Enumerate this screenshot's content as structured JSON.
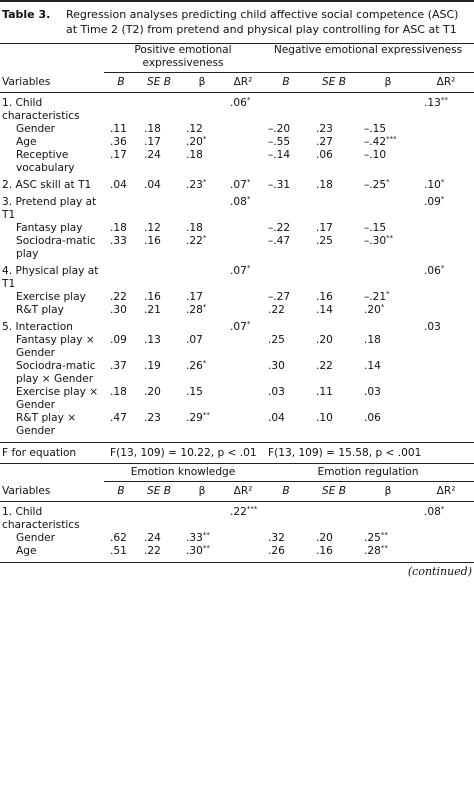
{
  "caption": {
    "label": "Table 3.",
    "text": "Regression analyses predicting child affective social competence (ASC) at Time 2 (T2) from pretend and physical play controlling for ASC at T1"
  },
  "tables": [
    {
      "groups": [
        "Positive emotional expressiveness",
        "Negative emotional expressiveness"
      ],
      "columns": [
        "Variables",
        "B",
        "SE B",
        "β",
        "ΔR²",
        "B",
        "SE B",
        "β",
        "ΔR²"
      ],
      "rows": [
        [
          "1. Child characteristics",
          null,
          null,
          null,
          ".06*",
          null,
          null,
          null,
          ".13**"
        ],
        [
          "Gender",
          ".11",
          ".18",
          ".12",
          null,
          "–.20",
          ".23",
          "–.15",
          null
        ],
        [
          "Age",
          ".36",
          ".17",
          ".20*",
          null,
          "–.55",
          ".27",
          "–.42***",
          null
        ],
        [
          "Receptive vocabulary",
          ".17",
          ".24",
          ".18",
          null,
          "–.14",
          ".06",
          "–.10",
          null
        ],
        [
          "2. ASC skill at T1",
          ".04",
          ".04",
          ".23*",
          ".07*",
          "–.31",
          ".18",
          "–.25*",
          ".10*"
        ],
        [
          "3. Pretend play at T1",
          null,
          null,
          null,
          ".08*",
          null,
          null,
          null,
          ".09*"
        ],
        [
          "Fantasy play",
          ".18",
          ".12",
          ".18",
          null,
          "–.22",
          ".17",
          "–.15",
          null
        ],
        [
          "Sociodra-matic play",
          ".33",
          ".16",
          ".22*",
          null,
          "–.47",
          ".25",
          "–.30**",
          null
        ],
        [
          "4. Physical play at T1",
          null,
          null,
          null,
          ".07*",
          null,
          null,
          null,
          ".06*"
        ],
        [
          "Exercise play",
          ".22",
          ".16",
          ".17",
          null,
          "–.27",
          ".16",
          "–.21*",
          null
        ],
        [
          "R&T play",
          ".30",
          ".21",
          ".28*",
          null,
          ".22",
          ".14",
          ".20*",
          null
        ],
        [
          "5. Interaction",
          null,
          null,
          null,
          ".07*",
          null,
          null,
          null,
          ".03"
        ],
        [
          "Fantasy play × Gender",
          ".09",
          ".13",
          ".07",
          null,
          ".25",
          ".20",
          ".18",
          null
        ],
        [
          "Sociodra-matic play × Gender",
          ".37",
          ".19",
          ".26*",
          null,
          ".30",
          ".22",
          ".14",
          null
        ],
        [
          "Exercise play × Gender",
          ".18",
          ".20",
          ".15",
          null,
          ".03",
          ".11",
          ".03",
          null
        ],
        [
          "R&T play × Gender",
          ".47",
          ".23",
          ".29**",
          null,
          ".04",
          ".10",
          ".06",
          null
        ]
      ],
      "footer": [
        "F for equation",
        "F(13, 109) = 10.22, p < .01",
        "F(13, 109) = 15.58, p < .001"
      ]
    },
    {
      "groups": [
        "Emotion knowledge",
        "Emotion regulation"
      ],
      "columns": [
        "Variables",
        "B",
        "SE B",
        "β",
        "ΔR²",
        "B",
        "SE B",
        "β",
        "ΔR²"
      ],
      "rows": [
        [
          "1. Child characteristics",
          null,
          null,
          null,
          ".22***",
          null,
          null,
          null,
          ".08*"
        ],
        [
          "Gender",
          ".62",
          ".24",
          ".33**",
          null,
          ".32",
          ".20",
          ".25**",
          null
        ],
        [
          "Age",
          ".51",
          ".22",
          ".30**",
          null,
          ".26",
          ".16",
          ".28**",
          null
        ]
      ]
    }
  ],
  "continued": "(continued)"
}
